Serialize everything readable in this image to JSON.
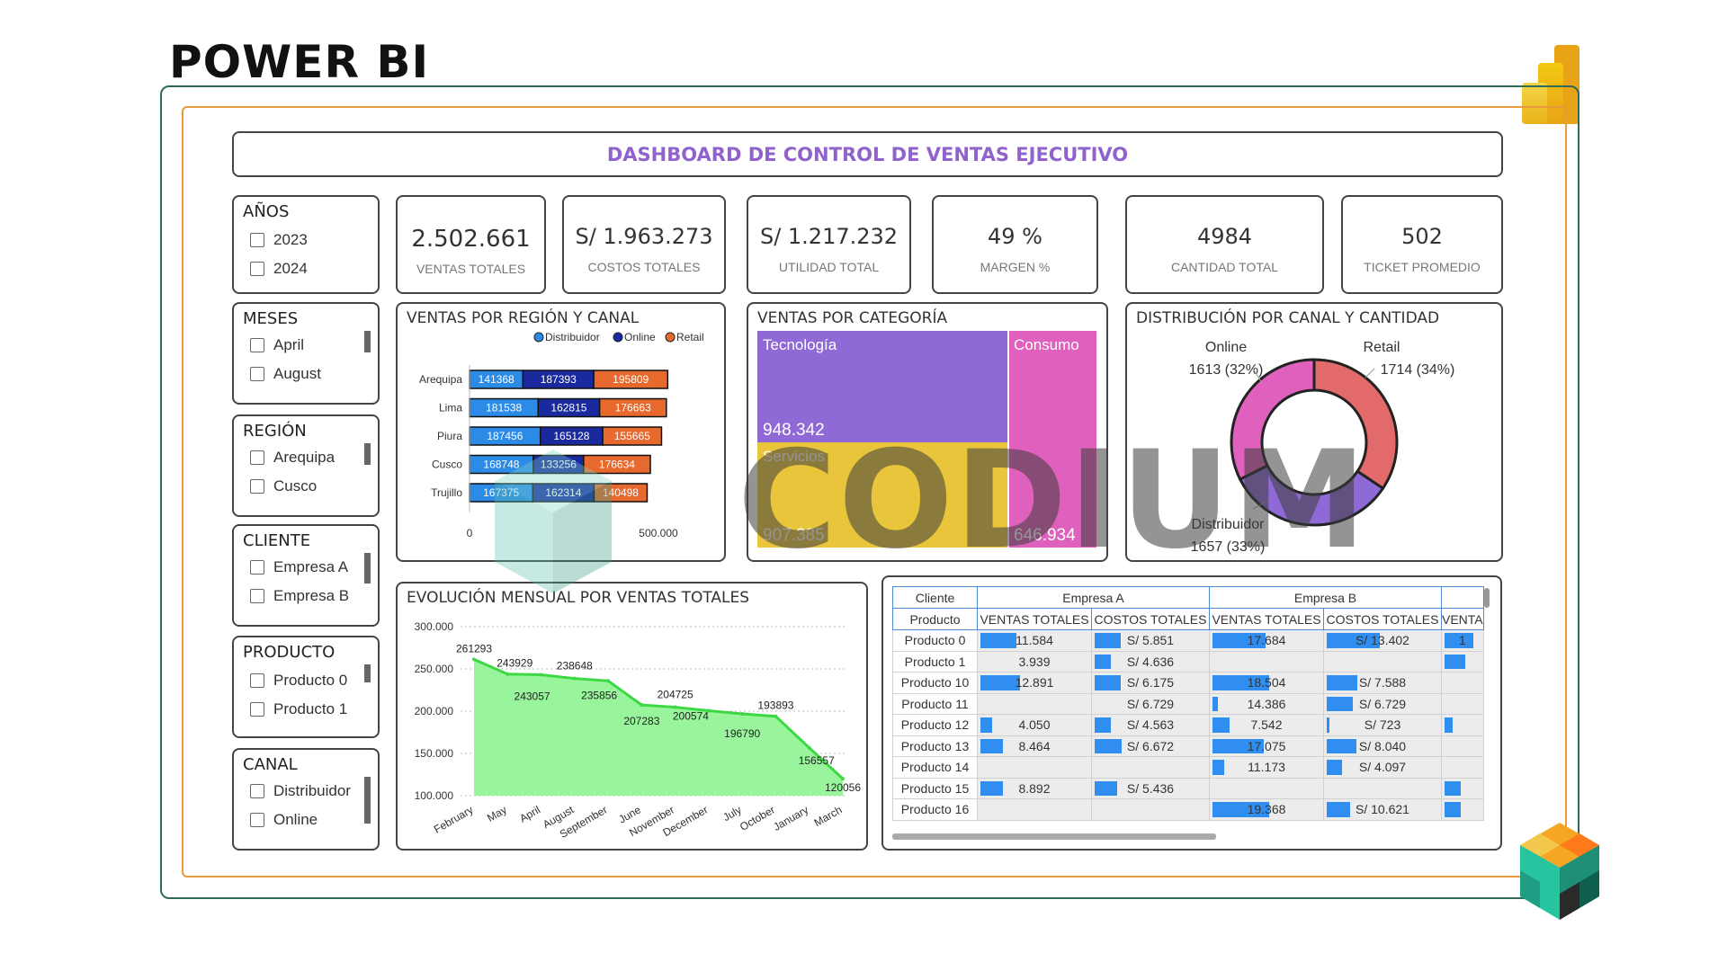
{
  "page_title": "POWER BI",
  "dashboard_title": "DASHBOARD DE CONTROL DE VENTAS EJECUTIVO",
  "watermark": "CODIUM",
  "slicers": {
    "anios": {
      "title": "AÑOS",
      "items": [
        "2023",
        "2024"
      ]
    },
    "meses": {
      "title": "MESES",
      "items": [
        "April",
        "August"
      ]
    },
    "region": {
      "title": "REGIÓN",
      "items": [
        "Arequipa",
        "Cusco"
      ]
    },
    "cliente": {
      "title": "CLIENTE",
      "items": [
        "Empresa A",
        "Empresa B"
      ]
    },
    "producto": {
      "title": "PRODUCTO",
      "items": [
        "Producto 0",
        "Producto 1"
      ]
    },
    "canal": {
      "title": "CANAL",
      "items": [
        "Distribuidor",
        "Online"
      ]
    }
  },
  "kpis": {
    "ventas": {
      "value": "2.502.661",
      "label": "VENTAS TOTALES"
    },
    "costos": {
      "value": "S/ 1.963.273",
      "label": "COSTOS TOTALES"
    },
    "utilidad": {
      "value": "S/ 1.217.232",
      "label": "UTILIDAD TOTAL"
    },
    "margen": {
      "value": "49 %",
      "label": "MARGEN %"
    },
    "cantidad": {
      "value": "4984",
      "label": "CANTIDAD TOTAL"
    },
    "ticket": {
      "value": "502",
      "label": "TICKET PROMEDIO"
    }
  },
  "region_chart": {
    "title": "VENTAS POR REGIÓN Y CANAL",
    "chart_data": {
      "type": "bar",
      "stacked": true,
      "orientation": "horizontal",
      "categories": [
        "Arequipa",
        "Lima",
        "Piura",
        "Cusco",
        "Trujillo"
      ],
      "series": [
        {
          "name": "Distribuidor",
          "values": [
            141368,
            181538,
            187456,
            168748,
            167375
          ]
        },
        {
          "name": "Online",
          "values": [
            187393,
            162815,
            165128,
            133256,
            162314
          ]
        },
        {
          "name": "Retail",
          "values": [
            195809,
            176663,
            155665,
            176634,
            140498
          ]
        }
      ],
      "xlim": [
        0,
        500000
      ],
      "x_ticks": [
        "0",
        "500.000"
      ],
      "legend_position": "top-right"
    },
    "colors": {
      "Distribuidor": "#2b8be6",
      "Online": "#1a2a9e",
      "Retail": "#e8692e"
    }
  },
  "category_chart": {
    "title": "VENTAS POR CATEGORÍA",
    "chart_data": {
      "type": "treemap",
      "categories": [
        "Tecnología",
        "Servicios",
        "Consumo"
      ],
      "values": [
        948342,
        907385,
        646934
      ]
    },
    "labels": {
      "tecnologia": "Tecnología",
      "servicios": "Servicios",
      "consumo": "Consumo"
    },
    "display_values": {
      "tecnologia": "948.342",
      "servicios": "907.385",
      "consumo": "646.934"
    },
    "colors": {
      "tecnologia": "#8f6ad6",
      "servicios": "#e8c53a",
      "consumo": "#e061bd"
    }
  },
  "canal_chart": {
    "title": "DISTRIBUCIÓN POR CANAL Y CANTIDAD",
    "chart_data": {
      "type": "pie",
      "donut": true,
      "categories": [
        "Online",
        "Retail",
        "Distribuidor"
      ],
      "values": [
        1613,
        1714,
        1657
      ],
      "percentages": [
        32,
        34,
        33
      ]
    },
    "labels": [
      {
        "name": "Online",
        "detail": "1613 (32%)"
      },
      {
        "name": "Retail",
        "detail": "1714 (34%)"
      },
      {
        "name": "Distribuidor",
        "detail": "1657 (33%)"
      }
    ],
    "colors": [
      "#e061bd",
      "#e26a6a",
      "#8f6ad6"
    ]
  },
  "monthly_chart": {
    "title": "EVOLUCIÓN MENSUAL POR VENTAS TOTALES",
    "chart_data": {
      "type": "area",
      "x": [
        "February",
        "May",
        "April",
        "August",
        "September",
        "June",
        "November",
        "December",
        "July",
        "October",
        "January",
        "March"
      ],
      "values": [
        261293,
        243929,
        243057,
        238648,
        235856,
        207283,
        204725,
        200574,
        196790,
        193893,
        156557,
        120056
      ],
      "ylim": [
        100000,
        300000
      ],
      "y_ticks": [
        "300.000",
        "250.000",
        "200.000",
        "150.000",
        "100.000"
      ],
      "y_tick_values": [
        300000,
        250000,
        200000,
        150000,
        100000
      ]
    },
    "point_labels": [
      "261293",
      "243929",
      "243057",
      "238648",
      "235856",
      "207283",
      "204725",
      "200574",
      "196790",
      "193893",
      "156557",
      "120056"
    ],
    "colors": {
      "fill": "#99f59b",
      "line": "#3dd944"
    }
  },
  "table": {
    "client_header": "Cliente",
    "product_header": "Producto",
    "clients": [
      "Empresa A",
      "Empresa B"
    ],
    "measures": [
      "VENTAS TOTALES",
      "COSTOS TOTALES"
    ],
    "truncated_measure": "VENTA",
    "rows": [
      {
        "product": "Producto 0",
        "a_ventas": "11.584",
        "a_ventas_pct": 0.32,
        "a_costos": "S/ 5.851",
        "a_costos_pct": 0.22,
        "b_ventas": "17.684",
        "b_ventas_pct": 0.47,
        "b_costos": "S/ 13.402",
        "b_costos_pct": 0.45,
        "t": "1",
        "t_pct": 0.7
      },
      {
        "product": "Producto 1",
        "a_ventas": "3.939",
        "a_ventas_pct": 0,
        "a_costos": "S/ 4.636",
        "a_costos_pct": 0.14,
        "b_ventas": "",
        "b_ventas_pct": 0,
        "b_costos": "",
        "b_costos_pct": 0,
        "t": "",
        "t_pct": 0.5
      },
      {
        "product": "Producto 10",
        "a_ventas": "12.891",
        "a_ventas_pct": 0.35,
        "a_costos": "S/ 6.175",
        "a_costos_pct": 0.22,
        "b_ventas": "18.504",
        "b_ventas_pct": 0.5,
        "b_costos": "S/ 7.588",
        "b_costos_pct": 0.26,
        "t": "",
        "t_pct": 0
      },
      {
        "product": "Producto 11",
        "a_ventas": "",
        "a_ventas_pct": 0,
        "a_costos": "S/ 6.729",
        "a_costos_pct": 0,
        "b_ventas": "14.386",
        "b_ventas_pct": 0.05,
        "b_costos": "S/ 6.729",
        "b_costos_pct": 0.22,
        "t": "",
        "t_pct": 0
      },
      {
        "product": "Producto 12",
        "a_ventas": "4.050",
        "a_ventas_pct": 0.1,
        "a_costos": "S/ 4.563",
        "a_costos_pct": 0.14,
        "b_ventas": "7.542",
        "b_ventas_pct": 0.15,
        "b_costos": "S/ 723",
        "b_costos_pct": 0.02,
        "t": "",
        "t_pct": 0.2
      },
      {
        "product": "Producto 13",
        "a_ventas": "8.464",
        "a_ventas_pct": 0.2,
        "a_costos": "S/ 6.672",
        "a_costos_pct": 0.23,
        "b_ventas": "17.075",
        "b_ventas_pct": 0.45,
        "b_costos": "S/ 8.040",
        "b_costos_pct": 0.25,
        "t": "",
        "t_pct": 0
      },
      {
        "product": "Producto 14",
        "a_ventas": "",
        "a_ventas_pct": 0,
        "a_costos": "",
        "a_costos_pct": 0,
        "b_ventas": "11.173",
        "b_ventas_pct": 0.1,
        "b_costos": "S/ 4.097",
        "b_costos_pct": 0.13,
        "t": "",
        "t_pct": 0
      },
      {
        "product": "Producto 15",
        "a_ventas": "8.892",
        "a_ventas_pct": 0.2,
        "a_costos": "S/ 5.436",
        "a_costos_pct": 0.19,
        "b_ventas": "",
        "b_ventas_pct": 0,
        "b_costos": "",
        "b_costos_pct": 0,
        "t": "",
        "t_pct": 0.4
      },
      {
        "product": "Producto 16",
        "a_ventas": "",
        "a_ventas_pct": 0,
        "a_costos": "",
        "a_costos_pct": 0,
        "b_ventas": "19.368",
        "b_ventas_pct": 0.5,
        "b_costos": "S/ 10.621",
        "b_costos_pct": 0.2,
        "t": "",
        "t_pct": 0.4
      }
    ]
  }
}
